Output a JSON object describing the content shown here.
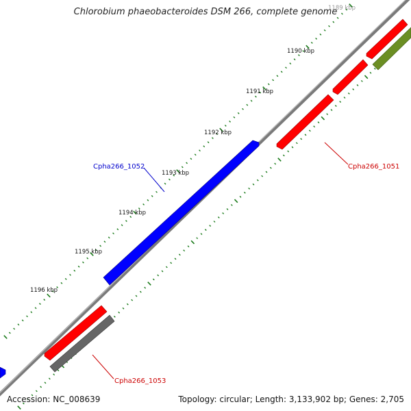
{
  "title": "Chlorobium phaeobacteroides DSM 266, complete genome",
  "footer": {
    "accession": "Accession: NC_008639",
    "summary": "Topology: circular; Length: 3,133,902 bp; Genes: 2,705"
  },
  "colors": {
    "backbone": "#888888",
    "tick": "#1a7a1a",
    "gene_blue": "#0000ff",
    "gene_red": "#ff0000",
    "gene_gray": "#666666",
    "gene_olive": "#6b8e23",
    "label_blue": "#0000cc",
    "label_red": "#cc0000"
  },
  "scale_labels": [
    "1189 kbp",
    "1190 kbp",
    "1191 kbp",
    "1192 kbp",
    "1193 kbp",
    "1194 kbp",
    "1195 kbp",
    "1196 kbp"
  ],
  "gene_labels": [
    {
      "text": "Cpha266_1052",
      "color": "label_blue"
    },
    {
      "text": "Cpha266_1051",
      "color": "label_red"
    },
    {
      "text": "Cpha266_1053",
      "color": "label_red"
    }
  ]
}
